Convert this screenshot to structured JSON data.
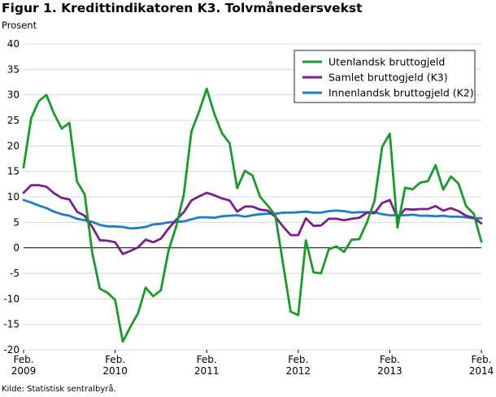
{
  "title": "Figur 1. Kredittindikatoren K3. Tolvmånedersvekst",
  "unit_label": "Prosent",
  "source": "Kilde: Statistisk sentralbyrå.",
  "chart_data": {
    "type": "line",
    "title": "Figur 1. Kredittindikatoren K3. Tolvmånedersvekst",
    "ylabel": "Prosent",
    "xlabel": "",
    "ylim": [
      -20,
      40
    ],
    "yticks": [
      -20,
      -15,
      -10,
      -5,
      0,
      5,
      10,
      15,
      20,
      25,
      30,
      35,
      40
    ],
    "grid": "horizontal",
    "legend_position": "top-right",
    "x_start": "2009-02",
    "x_end": "2014-02",
    "x_tick_labels": [
      {
        "month": "Feb.",
        "year": "2009",
        "period": "2009-02"
      },
      {
        "month": "Feb.",
        "year": "2010",
        "period": "2010-02"
      },
      {
        "month": "Feb.",
        "year": "2011",
        "period": "2011-02"
      },
      {
        "month": "Feb.",
        "year": "2012",
        "period": "2012-02"
      },
      {
        "month": "Feb.",
        "year": "2013",
        "period": "2013-02"
      },
      {
        "month": "Feb.",
        "year": "2014",
        "period": "2014-02"
      }
    ],
    "series": [
      {
        "name": "Utenlandsk bruttogjeld",
        "color": "#1a9a2a",
        "values": [
          15.8,
          25.5,
          28.8,
          30.0,
          26.3,
          23.4,
          24.5,
          13.0,
          10.5,
          -1.0,
          -8.0,
          -8.8,
          -10.2,
          -18.4,
          -15.5,
          -12.8,
          -7.8,
          -9.5,
          -8.3,
          -0.5,
          4.2,
          10.5,
          22.8,
          26.7,
          31.2,
          26.3,
          22.5,
          20.5,
          11.7,
          15.1,
          14.2,
          10.0,
          8.3,
          6.4,
          -3.0,
          -12.5,
          -13.2,
          1.5,
          -4.8,
          -5.0,
          -0.3,
          0.3,
          -0.8,
          1.6,
          1.7,
          5.0,
          9.2,
          19.8,
          22.4,
          4.0,
          11.8,
          11.5,
          12.8,
          13.1,
          16.2,
          11.4,
          14.0,
          12.6,
          8.2,
          6.7,
          1.2
        ],
        "highlights": []
      },
      {
        "name": "Samlet bruttogjeld (K3)",
        "color": "#7b1e8e",
        "values": [
          10.8,
          12.3,
          12.3,
          12.0,
          10.7,
          9.8,
          9.5,
          7.1,
          6.3,
          4.1,
          1.5,
          1.4,
          1.1,
          -1.2,
          -0.6,
          0.1,
          1.6,
          1.1,
          1.8,
          3.8,
          5.5,
          7.0,
          9.3,
          10.1,
          10.8,
          10.3,
          9.7,
          9.3,
          7.1,
          8.1,
          8.1,
          7.5,
          7.3,
          6.1,
          4.2,
          2.5,
          2.5,
          5.8,
          4.3,
          4.4,
          5.7,
          5.7,
          5.4,
          5.7,
          5.9,
          6.9,
          6.8,
          8.8,
          9.4,
          5.9,
          7.6,
          7.5,
          7.6,
          7.6,
          8.2,
          7.3,
          7.8,
          7.2,
          6.3,
          5.9,
          4.8
        ],
        "highlights": []
      },
      {
        "name": "Innenlandsk bruttogjeld (K2)",
        "color": "#1a7fc6",
        "values": [
          9.4,
          8.9,
          8.3,
          7.8,
          7.1,
          6.6,
          6.3,
          5.7,
          5.4,
          5.1,
          4.5,
          4.2,
          4.2,
          4.1,
          3.8,
          3.9,
          4.1,
          4.6,
          4.7,
          5.0,
          5.1,
          5.2,
          5.6,
          6.0,
          6.0,
          5.9,
          6.2,
          6.3,
          6.4,
          6.1,
          6.4,
          6.6,
          6.7,
          6.7,
          6.9,
          6.9,
          7.0,
          7.1,
          6.9,
          6.9,
          7.2,
          7.3,
          7.2,
          6.9,
          7.0,
          7.0,
          7.0,
          6.6,
          6.4,
          6.4,
          6.4,
          6.5,
          6.3,
          6.3,
          6.2,
          6.3,
          6.1,
          6.1,
          6.0,
          5.8,
          5.8
        ],
        "highlights": []
      }
    ]
  }
}
